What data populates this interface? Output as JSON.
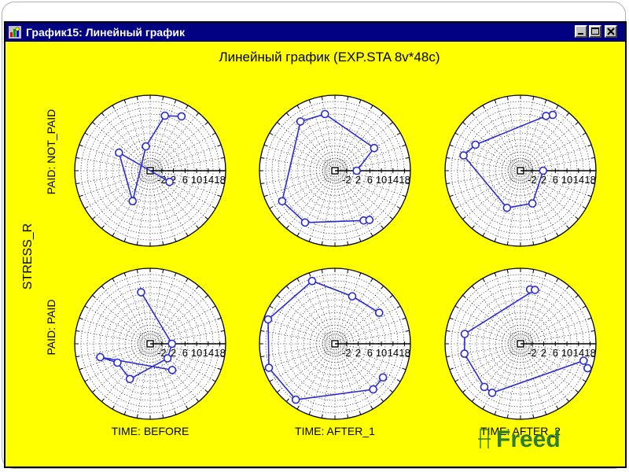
{
  "window": {
    "title": "График15: Линейный график",
    "controls": [
      "minimize",
      "maximize",
      "close"
    ],
    "title_bar_color": "#000080",
    "background_color": "#ffff00",
    "series_color": "#2b2bd6"
  },
  "chart_data": {
    "type": "line",
    "polar": true,
    "title": "Линейный график (EXP.STA 8v*48c)",
    "ylabel": "STRESS_R",
    "radial_tick_labels": [
      "-2",
      "2",
      "6",
      "10",
      "14",
      "18"
    ],
    "radial_range": [
      -6,
      20
    ],
    "grid": true,
    "row_labels": [
      "PAID: NOT_PAID",
      "PAID: PAID"
    ],
    "column_labels": [
      "TIME: BEFORE",
      "TIME: AFTER_1",
      "TIME: AFTER_2"
    ],
    "panels": [
      {
        "row": 0,
        "col": 0,
        "points": [
          [
            60,
            15.6
          ],
          [
            75,
            13.6
          ],
          [
            100,
            2.5
          ],
          [
            -120,
            6.1
          ],
          [
            150,
            6.4
          ],
          [
            -30,
            1.7
          ]
        ]
      },
      {
        "row": 0,
        "col": 1,
        "points": [
          [
            0,
            1.5
          ],
          [
            30,
            9.6
          ],
          [
            100,
            13.8
          ],
          [
            125,
            14.7
          ],
          [
            -150,
            15
          ],
          [
            -120,
            14.6
          ],
          [
            -60,
            13.8
          ],
          [
            -55,
            14.7
          ]
        ]
      },
      {
        "row": 0,
        "col": 2,
        "points": [
          [
            60,
            16.2
          ],
          [
            65,
            14.8
          ],
          [
            150,
            11.9
          ],
          [
            165,
            14.3
          ],
          [
            -110,
            7.6
          ],
          [
            -70,
            6
          ],
          [
            0,
            1.8
          ]
        ]
      },
      {
        "row": 1,
        "col": 0,
        "points": [
          [
            100,
            12
          ],
          [
            0,
            1.5
          ],
          [
            -40,
            1.8
          ],
          [
            -120,
            8
          ],
          [
            -150,
            7
          ],
          [
            -165,
            11.8
          ],
          [
            -50,
            5.8
          ]
        ]
      },
      {
        "row": 1,
        "col": 1,
        "points": [
          [
            35,
            12.6
          ],
          [
            70,
            11.4
          ],
          [
            110,
            17
          ],
          [
            160,
            18.5
          ],
          [
            -160,
            18.2
          ],
          [
            -125,
            17.5
          ],
          [
            -50,
            14.5
          ],
          [
            -35,
            14.2
          ]
        ]
      },
      {
        "row": 1,
        "col": 2,
        "points": [
          [
            80,
            13
          ],
          [
            75,
            13.2
          ],
          [
            170,
            13.5
          ],
          [
            -170,
            13.6
          ],
          [
            -130,
            13.4
          ],
          [
            -120,
            13.5
          ],
          [
            -15,
            16.5
          ],
          [
            -20,
            18.6
          ]
        ]
      }
    ]
  },
  "watermark": {
    "text": "Freed",
    "color": "#2e7d32"
  }
}
